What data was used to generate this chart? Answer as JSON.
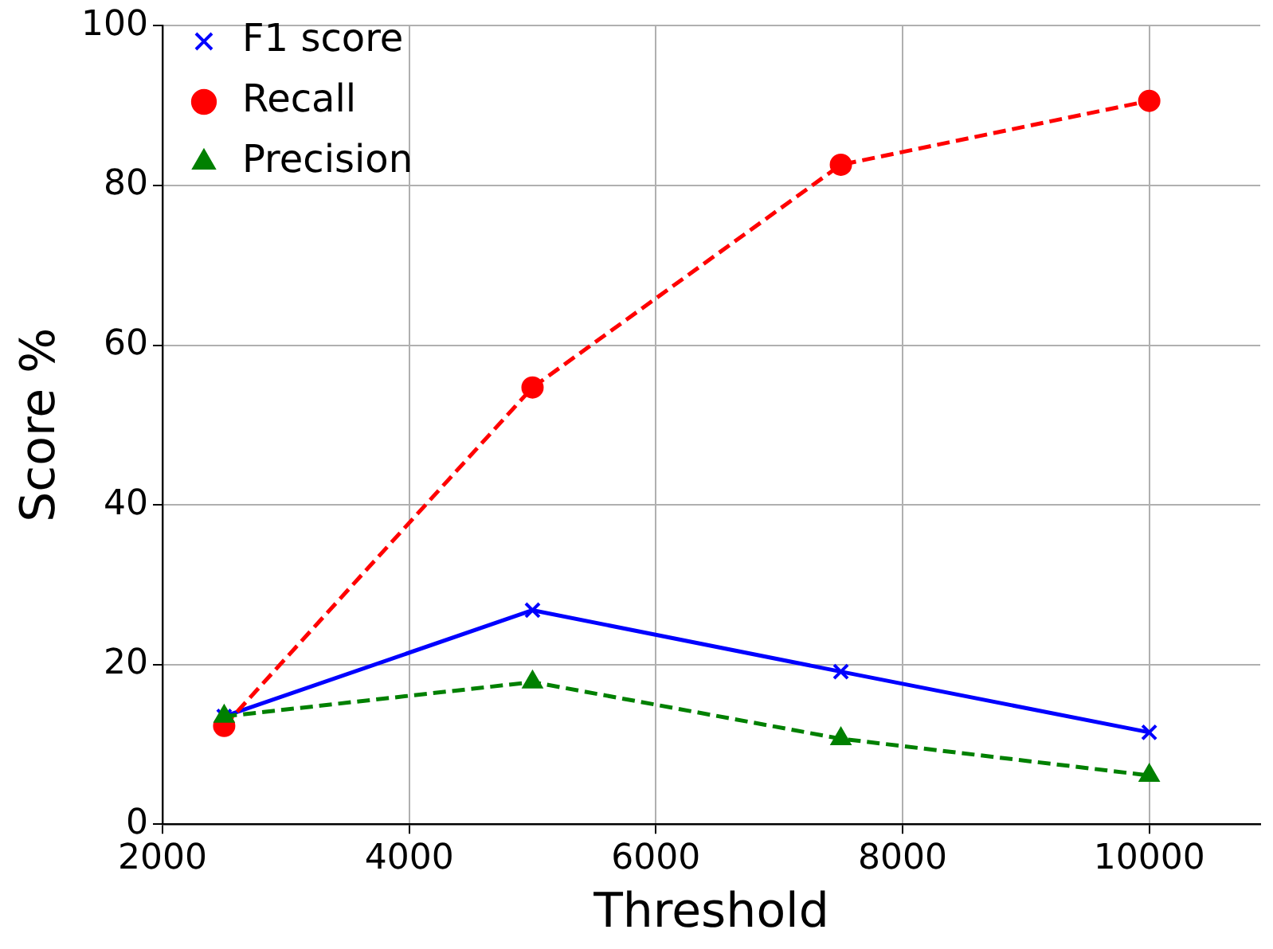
{
  "chart_data": {
    "type": "line",
    "xlabel": "Threshold",
    "ylabel": "Score %",
    "x": [
      2500,
      5000,
      7500,
      10000
    ],
    "series": [
      {
        "name": "F1 score",
        "color": "#0000ff",
        "values": [
          13.5,
          26.8,
          19.1,
          11.5
        ],
        "marker": "cross",
        "line_style": "solid"
      },
      {
        "name": "Recall",
        "color": "#ff0000",
        "values": [
          12.3,
          54.7,
          82.6,
          90.6
        ],
        "marker": "circle",
        "line_style": "dashed"
      },
      {
        "name": "Precision",
        "color": "#008000",
        "values": [
          13.5,
          17.8,
          10.7,
          6.1
        ],
        "marker": "triangle",
        "line_style": "dashed"
      }
    ],
    "xlim": [
      2000,
      10900
    ],
    "xticks": [
      2000,
      4000,
      6000,
      8000,
      10000
    ],
    "ylim": [
      0,
      100
    ],
    "yticks": [
      0,
      20,
      40,
      60,
      80,
      100
    ],
    "grid": true,
    "legend": "top left"
  }
}
